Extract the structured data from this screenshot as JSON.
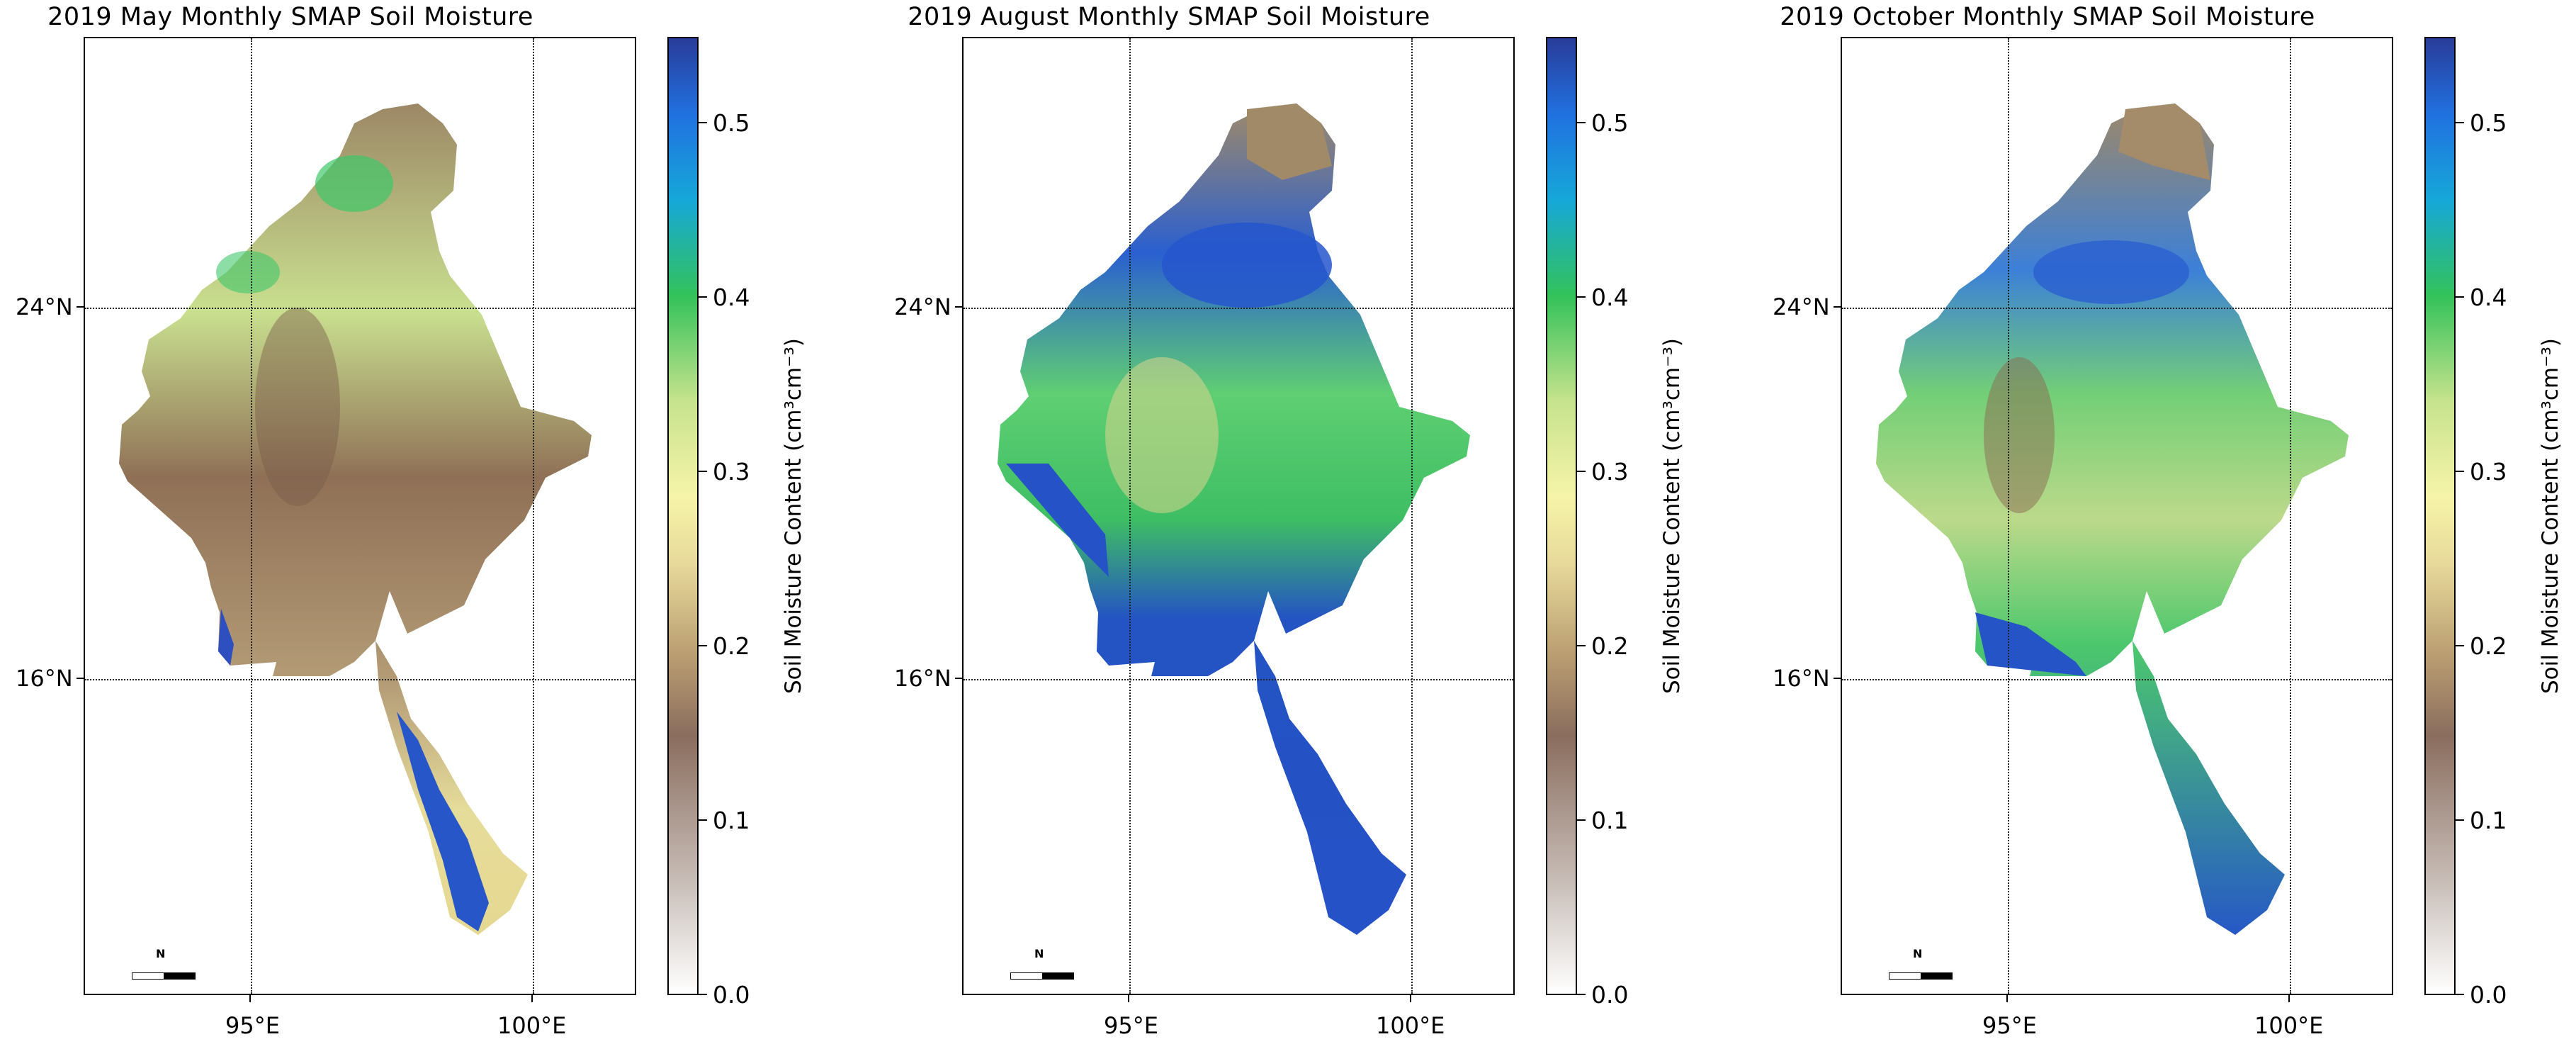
{
  "figure": {
    "panels": [
      {
        "title": "2019 May Monthly SMAP Soil Moisture",
        "lat_labels": [
          "24°N",
          "16°N"
        ],
        "lon_labels": [
          "95°E",
          "100°E"
        ],
        "colorbar": {
          "label": "Soil Moisture Content (cm³cm⁻³)",
          "ticks": [
            "0.0",
            "0.1",
            "0.2",
            "0.3",
            "0.4",
            "0.5"
          ]
        },
        "north_arrow": "N",
        "dominant_condition": "dry"
      },
      {
        "title": "2019 August Monthly SMAP Soil Moisture",
        "lat_labels": [
          "24°N",
          "16°N"
        ],
        "lon_labels": [
          "95°E",
          "100°E"
        ],
        "colorbar": {
          "label": "Soil Moisture Content (cm³cm⁻³)",
          "ticks": [
            "0.0",
            "0.1",
            "0.2",
            "0.3",
            "0.4",
            "0.5"
          ]
        },
        "north_arrow": "N",
        "dominant_condition": "wet"
      },
      {
        "title": "2019 October Monthly SMAP Soil Moisture",
        "lat_labels": [
          "24°N",
          "16°N"
        ],
        "lon_labels": [
          "95°E",
          "100°E"
        ],
        "colorbar": {
          "label": "Soil Moisture Content (cm³cm⁻³)",
          "ticks": [
            "0.0",
            "0.1",
            "0.2",
            "0.3",
            "0.4",
            "0.5"
          ]
        },
        "north_arrow": "N",
        "dominant_condition": "moist"
      }
    ],
    "colorscale": {
      "min": 0.0,
      "max": 0.55,
      "colors": [
        "#ffffff",
        "#8a6d5e",
        "#f6f4a8",
        "#33c25a",
        "#2071e0",
        "#293c9a"
      ]
    }
  }
}
